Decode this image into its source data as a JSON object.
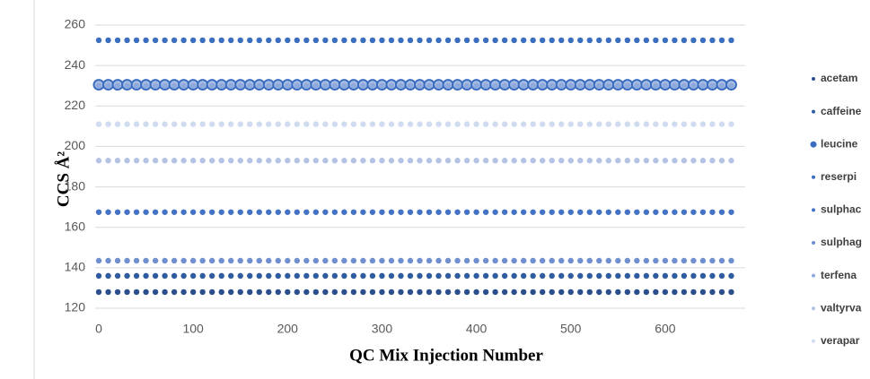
{
  "chart_data": {
    "type": "scatter",
    "x_label": "QC Mix Injection Number",
    "y_label": "CCS Å²",
    "xlim": [
      0,
      680
    ],
    "xticks": [
      0,
      100,
      200,
      300,
      400,
      500,
      600
    ],
    "ylim": [
      120,
      260
    ],
    "yticks": [
      120,
      140,
      160,
      180,
      200,
      220,
      240,
      260
    ],
    "grid": true,
    "x": [
      0,
      10,
      20,
      30,
      40,
      50,
      60,
      70,
      80,
      90,
      100,
      110,
      120,
      130,
      140,
      150,
      160,
      170,
      180,
      190,
      200,
      210,
      220,
      230,
      240,
      250,
      260,
      270,
      280,
      290,
      300,
      310,
      320,
      330,
      340,
      350,
      360,
      370,
      380,
      390,
      400,
      410,
      420,
      430,
      440,
      450,
      460,
      470,
      480,
      490,
      500,
      510,
      520,
      530,
      540,
      550,
      560,
      570,
      580,
      590,
      600,
      610,
      620,
      630,
      640,
      650,
      660,
      670
    ],
    "series": [
      {
        "name": "acetam",
        "color": "#2b4f8c",
        "values": [
          128,
          128,
          128,
          128,
          128,
          128,
          128,
          128,
          128,
          128,
          128,
          128,
          128,
          128,
          128,
          128,
          128,
          128,
          128,
          128,
          128,
          128,
          128,
          128,
          128,
          128,
          128,
          128,
          128,
          128,
          128,
          128,
          128,
          128,
          128,
          128,
          128,
          128,
          128,
          128,
          128,
          128,
          128,
          128,
          128,
          128,
          128,
          128,
          128,
          128,
          128,
          128,
          128,
          128,
          128,
          128,
          128,
          128,
          128,
          128,
          128,
          128,
          128,
          128,
          128,
          128,
          128,
          128
        ]
      },
      {
        "name": "caffeine",
        "color": "#2f5c9f",
        "values": [
          136,
          136,
          136,
          136,
          136,
          136,
          136,
          136,
          136,
          136,
          136,
          136,
          136,
          136,
          136,
          136,
          136,
          136,
          136,
          136,
          136,
          136,
          136,
          136,
          136,
          136,
          136,
          136,
          136,
          136,
          136,
          136,
          136,
          136,
          136,
          136,
          136,
          136,
          136,
          136,
          136,
          136,
          136,
          136,
          136,
          136,
          136,
          136,
          136,
          136,
          136,
          136,
          136,
          136,
          136,
          136,
          136,
          136,
          136,
          136,
          136,
          136,
          136,
          136,
          136,
          136,
          136,
          136
        ]
      },
      {
        "name": "leucine",
        "color": "#3a6cc0",
        "values": [
          230.5,
          230.5,
          230.5,
          230.5,
          230.5,
          230.5,
          230.5,
          230.5,
          230.5,
          230.5,
          230.5,
          230.5,
          230.5,
          230.5,
          230.5,
          230.5,
          230.5,
          230.5,
          230.5,
          230.5,
          230.5,
          230.5,
          230.5,
          230.5,
          230.5,
          230.5,
          230.5,
          230.5,
          230.5,
          230.5,
          230.5,
          230.5,
          230.5,
          230.5,
          230.5,
          230.5,
          230.5,
          230.5,
          230.5,
          230.5,
          230.5,
          230.5,
          230.5,
          230.5,
          230.5,
          230.5,
          230.5,
          230.5,
          230.5,
          230.5,
          230.5,
          230.5,
          230.5,
          230.5,
          230.5,
          230.5,
          230.5,
          230.5,
          230.5,
          230.5,
          230.5,
          230.5,
          230.5,
          230.5,
          230.5,
          230.5,
          230.5,
          230.5
        ]
      },
      {
        "name": "reserpi",
        "color": "#3c6ebf",
        "values": [
          252.5,
          252.5,
          252.5,
          252.5,
          252.5,
          252.5,
          252.5,
          252.5,
          252.5,
          252.5,
          252.5,
          252.5,
          252.5,
          252.5,
          252.5,
          252.5,
          252.5,
          252.5,
          252.5,
          252.5,
          252.5,
          252.5,
          252.5,
          252.5,
          252.5,
          252.5,
          252.5,
          252.5,
          252.5,
          252.5,
          252.5,
          252.5,
          252.5,
          252.5,
          252.5,
          252.5,
          252.5,
          252.5,
          252.5,
          252.5,
          252.5,
          252.5,
          252.5,
          252.5,
          252.5,
          252.5,
          252.5,
          252.5,
          252.5,
          252.5,
          252.5,
          252.5,
          252.5,
          252.5,
          252.5,
          252.5,
          252.5,
          252.5,
          252.5,
          252.5,
          252.5,
          252.5,
          252.5,
          252.5,
          252.5,
          252.5,
          252.5,
          252.5
        ]
      },
      {
        "name": "sulphac",
        "color": "#4472c4",
        "values": [
          167.5,
          167.5,
          167.5,
          167.5,
          167.5,
          167.5,
          167.5,
          167.5,
          167.5,
          167.5,
          167.5,
          167.5,
          167.5,
          167.5,
          167.5,
          167.5,
          167.5,
          167.5,
          167.5,
          167.5,
          167.5,
          167.5,
          167.5,
          167.5,
          167.5,
          167.5,
          167.5,
          167.5,
          167.5,
          167.5,
          167.5,
          167.5,
          167.5,
          167.5,
          167.5,
          167.5,
          167.5,
          167.5,
          167.5,
          167.5,
          167.5,
          167.5,
          167.5,
          167.5,
          167.5,
          167.5,
          167.5,
          167.5,
          167.5,
          167.5,
          167.5,
          167.5,
          167.5,
          167.5,
          167.5,
          167.5,
          167.5,
          167.5,
          167.5,
          167.5,
          167.5,
          167.5,
          167.5,
          167.5,
          167.5,
          167.5,
          167.5,
          167.5
        ]
      },
      {
        "name": "sulphag",
        "color": "#6f8fcf",
        "values": [
          143.5,
          143.5,
          143.5,
          143.5,
          143.5,
          143.5,
          143.5,
          143.5,
          143.5,
          143.5,
          143.5,
          143.5,
          143.5,
          143.5,
          143.5,
          143.5,
          143.5,
          143.5,
          143.5,
          143.5,
          143.5,
          143.5,
          143.5,
          143.5,
          143.5,
          143.5,
          143.5,
          143.5,
          143.5,
          143.5,
          143.5,
          143.5,
          143.5,
          143.5,
          143.5,
          143.5,
          143.5,
          143.5,
          143.5,
          143.5,
          143.5,
          143.5,
          143.5,
          143.5,
          143.5,
          143.5,
          143.5,
          143.5,
          143.5,
          143.5,
          143.5,
          143.5,
          143.5,
          143.5,
          143.5,
          143.5,
          143.5,
          143.5,
          143.5,
          143.5,
          143.5,
          143.5,
          143.5,
          143.5,
          143.5,
          143.5,
          143.5,
          143.5
        ]
      },
      {
        "name": "terfena",
        "color": "#8ea9db",
        "values": [
          230,
          230,
          230,
          230,
          230,
          230,
          230,
          230,
          230,
          230,
          230,
          230,
          230,
          230,
          230,
          230,
          230,
          230,
          230,
          230,
          230,
          230,
          230,
          230,
          230,
          230,
          230,
          230,
          230,
          230,
          230,
          230,
          230,
          230,
          230,
          230,
          230,
          230,
          230,
          230,
          230,
          230,
          230,
          230,
          230,
          230,
          230,
          230,
          230,
          230,
          230,
          230,
          230,
          230,
          230,
          230,
          230,
          230,
          230,
          230,
          230,
          230,
          230,
          230,
          230,
          230,
          230,
          230
        ]
      },
      {
        "name": "valtyrva",
        "color": "#b4c3e4",
        "values": [
          193,
          193,
          193,
          193,
          193,
          193,
          193,
          193,
          193,
          193,
          193,
          193,
          193,
          193,
          193,
          193,
          193,
          193,
          193,
          193,
          193,
          193,
          193,
          193,
          193,
          193,
          193,
          193,
          193,
          193,
          193,
          193,
          193,
          193,
          193,
          193,
          193,
          193,
          193,
          193,
          193,
          193,
          193,
          193,
          193,
          193,
          193,
          193,
          193,
          193,
          193,
          193,
          193,
          193,
          193,
          193,
          193,
          193,
          193,
          193,
          193,
          193,
          193,
          193,
          193,
          193,
          193,
          193
        ]
      },
      {
        "name": "verapar",
        "color": "#d0dbf0",
        "values": [
          211,
          211,
          211,
          211,
          211,
          211,
          211,
          211,
          211,
          211,
          211,
          211,
          211,
          211,
          211,
          211,
          211,
          211,
          211,
          211,
          211,
          211,
          211,
          211,
          211,
          211,
          211,
          211,
          211,
          211,
          211,
          211,
          211,
          211,
          211,
          211,
          211,
          211,
          211,
          211,
          211,
          211,
          211,
          211,
          211,
          211,
          211,
          211,
          211,
          211,
          211,
          211,
          211,
          211,
          211,
          211,
          211,
          211,
          211,
          211,
          211,
          211,
          211,
          211,
          211,
          211,
          211,
          211
        ]
      }
    ]
  }
}
